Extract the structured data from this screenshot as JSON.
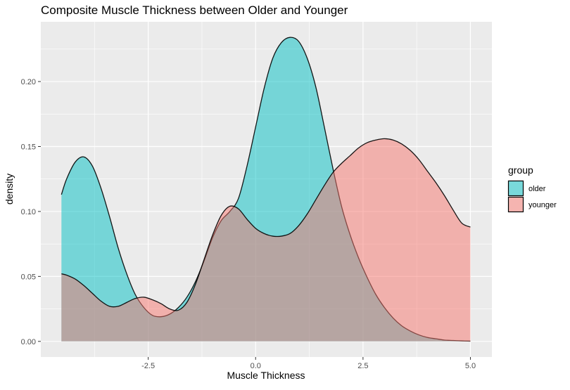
{
  "chart_data": {
    "type": "area",
    "title": "Composite Muscle Thickness between Older and Younger",
    "xlabel": "Muscle Thickness",
    "ylabel": "density",
    "xlim": [
      -5.0,
      5.5
    ],
    "ylim": [
      -0.012,
      0.246
    ],
    "x_ticks": [
      -2.5,
      0.0,
      2.5,
      5.0
    ],
    "x_tick_labels": [
      "-2.5",
      "0.0",
      "2.5",
      "5.0"
    ],
    "y_ticks": [
      0.0,
      0.05,
      0.1,
      0.15,
      0.2
    ],
    "y_tick_labels": [
      "0.00",
      "0.05",
      "0.10",
      "0.15",
      "0.20"
    ],
    "grid": true,
    "legend_title": "group",
    "legend_position": "right",
    "series": [
      {
        "name": "older",
        "color": "#00BFC4",
        "x": [
          -4.52,
          -4.4,
          -4.2,
          -4.0,
          -3.8,
          -3.6,
          -3.4,
          -3.2,
          -3.0,
          -2.8,
          -2.6,
          -2.4,
          -2.2,
          -2.0,
          -1.8,
          -1.6,
          -1.4,
          -1.2,
          -1.0,
          -0.8,
          -0.6,
          -0.4,
          -0.2,
          0.0,
          0.2,
          0.4,
          0.6,
          0.8,
          1.0,
          1.2,
          1.4,
          1.6,
          1.8,
          2.0,
          2.2,
          2.4,
          2.6,
          2.8,
          3.0,
          3.2,
          3.4,
          3.6,
          3.8,
          4.0,
          4.2,
          4.4,
          4.6,
          4.8,
          5.0
        ],
        "y": [
          0.113,
          0.125,
          0.138,
          0.142,
          0.135,
          0.118,
          0.096,
          0.072,
          0.052,
          0.036,
          0.026,
          0.02,
          0.019,
          0.021,
          0.026,
          0.034,
          0.046,
          0.062,
          0.08,
          0.093,
          0.1,
          0.11,
          0.135,
          0.165,
          0.195,
          0.218,
          0.23,
          0.234,
          0.231,
          0.218,
          0.196,
          0.165,
          0.133,
          0.104,
          0.082,
          0.064,
          0.049,
          0.036,
          0.026,
          0.018,
          0.012,
          0.008,
          0.005,
          0.003,
          0.002,
          0.001,
          0.0007,
          0.0004,
          0.0002
        ]
      },
      {
        "name": "younger",
        "color": "#F8766D",
        "x": [
          -4.52,
          -4.4,
          -4.2,
          -4.0,
          -3.8,
          -3.6,
          -3.4,
          -3.2,
          -3.0,
          -2.8,
          -2.6,
          -2.4,
          -2.2,
          -2.0,
          -1.8,
          -1.6,
          -1.4,
          -1.2,
          -1.0,
          -0.8,
          -0.6,
          -0.4,
          -0.2,
          0.0,
          0.2,
          0.4,
          0.6,
          0.8,
          1.0,
          1.2,
          1.4,
          1.6,
          1.8,
          2.0,
          2.2,
          2.4,
          2.6,
          2.8,
          3.0,
          3.2,
          3.4,
          3.6,
          3.8,
          4.0,
          4.2,
          4.4,
          4.6,
          4.8,
          5.0
        ],
        "y": [
          0.052,
          0.051,
          0.048,
          0.043,
          0.037,
          0.031,
          0.027,
          0.027,
          0.03,
          0.033,
          0.034,
          0.032,
          0.029,
          0.025,
          0.024,
          0.03,
          0.044,
          0.063,
          0.082,
          0.097,
          0.104,
          0.102,
          0.094,
          0.087,
          0.083,
          0.081,
          0.081,
          0.083,
          0.089,
          0.098,
          0.109,
          0.12,
          0.13,
          0.137,
          0.143,
          0.149,
          0.153,
          0.155,
          0.156,
          0.155,
          0.152,
          0.147,
          0.14,
          0.131,
          0.122,
          0.112,
          0.101,
          0.091,
          0.088
        ]
      }
    ]
  }
}
